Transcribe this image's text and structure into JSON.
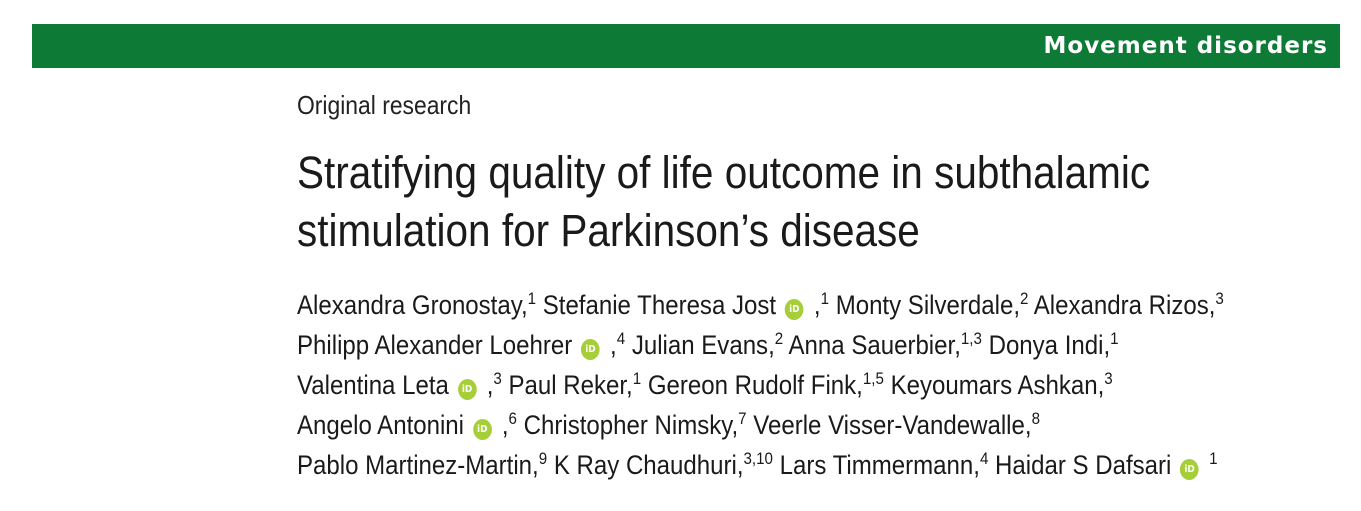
{
  "banner": {
    "section": "Movement disorders"
  },
  "article": {
    "type": "Original research",
    "title_lines": [
      "Stratifying quality of life outcome in subthalamic",
      "stimulation for Parkinson’s disease"
    ]
  },
  "orcid_icon_text": "iD",
  "author_lines": [
    [
      "Alexandra Gronostay,",
      "1",
      " Stefanie Theresa Jost",
      "",
      " ,",
      "1",
      " Monty Silverdale,",
      "2",
      " Alexandra Rizos,",
      "3"
    ],
    [
      "Philipp Alexander Loehrer",
      "",
      " ,",
      "4",
      " Julian Evans,",
      "2",
      " Anna Sauerbier,",
      "1,3",
      " Donya Indi,",
      "1"
    ],
    [
      "Valentina Leta",
      "",
      " ,",
      "3",
      " Paul Reker,",
      "1",
      " Gereon Rudolf Fink,",
      "1,5",
      " Keyoumars Ashkan,",
      "3"
    ],
    [
      "Angelo Antonini",
      "",
      " ,",
      "6",
      " Christopher Nimsky,",
      "7",
      " Veerle Visser-Vandewalle,",
      "8"
    ],
    [
      "Pablo Martinez-Martin,",
      "9",
      " K Ray Chaudhuri,",
      "3,10",
      " Lars Timmermann,",
      "4",
      " Haidar S Dafsari",
      "",
      " ",
      "1"
    ]
  ]
}
